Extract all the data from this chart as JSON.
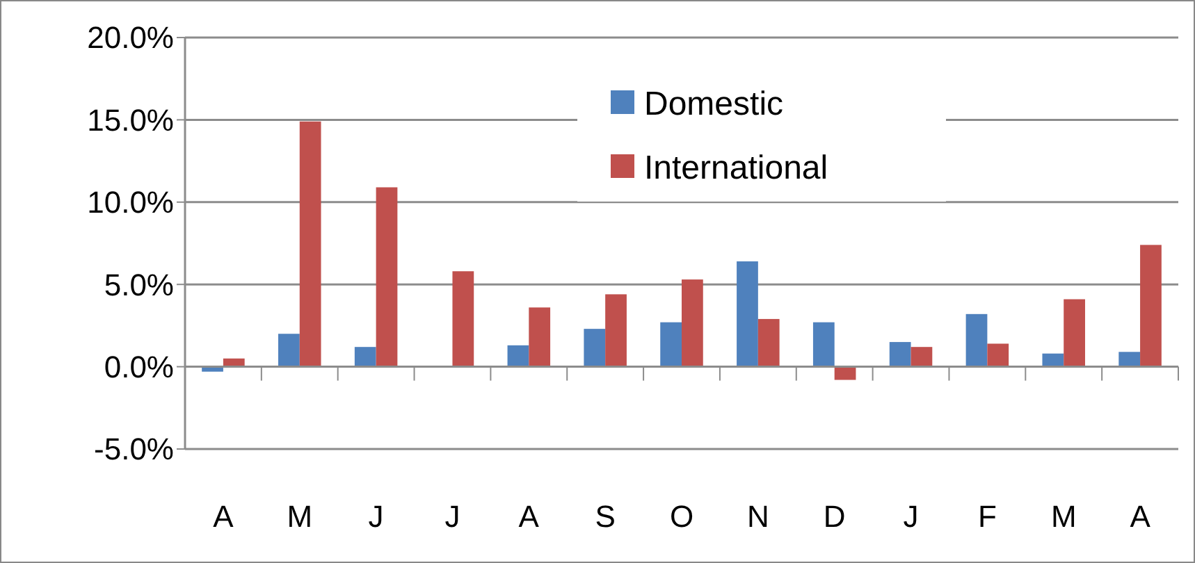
{
  "chart_data": {
    "type": "bar",
    "categories": [
      "A",
      "M",
      "J",
      "J",
      "A",
      "S",
      "O",
      "N",
      "D",
      "J",
      "F",
      "M",
      "A"
    ],
    "series": [
      {
        "name": "Domestic",
        "color": "#4f81bd",
        "values": [
          -0.3,
          2.0,
          1.2,
          0,
          1.3,
          2.3,
          2.7,
          6.4,
          2.7,
          1.5,
          3.2,
          0.8,
          0.9
        ]
      },
      {
        "name": "International",
        "color": "#c0504d",
        "values": [
          0.5,
          14.9,
          10.9,
          5.8,
          3.6,
          4.4,
          5.3,
          2.9,
          -0.8,
          1.2,
          1.4,
          4.1,
          7.4
        ]
      }
    ],
    "ylim": [
      -5,
      20
    ],
    "yticks": [
      {
        "value": -5,
        "label": "-5.0%"
      },
      {
        "value": 0,
        "label": "0.0%"
      },
      {
        "value": 5,
        "label": "5.0%"
      },
      {
        "value": 10,
        "label": "10.0%"
      },
      {
        "value": 15,
        "label": "15.0%"
      },
      {
        "value": 20,
        "label": "20.0%"
      }
    ],
    "grid": "y",
    "legend": "top"
  }
}
